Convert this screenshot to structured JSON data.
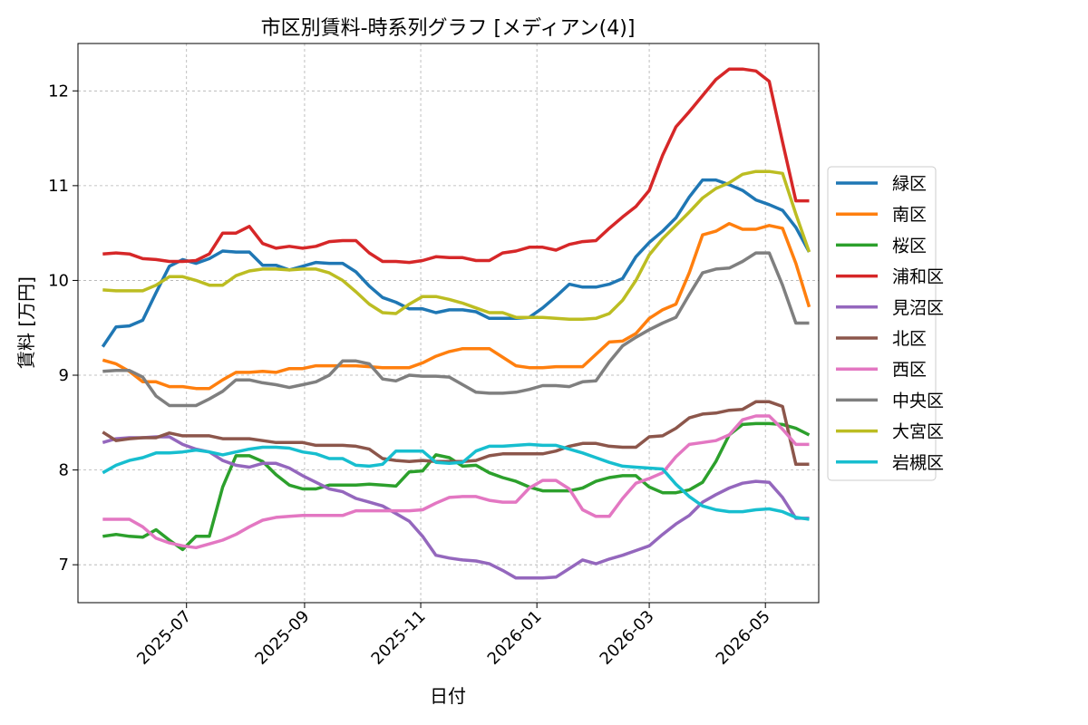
{
  "chart_data": {
    "type": "line",
    "title": "市区別賃料-時系列グラフ [メディアン(4)]",
    "xlabel": "日付",
    "ylabel": "賃料 [万円]",
    "xlim": [
      "2025-05-05",
      "2026-05-29"
    ],
    "ylim": [
      6.6,
      12.5
    ],
    "x_ticks": [
      "2025-07",
      "2025-09",
      "2025-11",
      "2026-01",
      "2026-03",
      "2026-05"
    ],
    "y_ticks": [
      7,
      8,
      9,
      10,
      11,
      12
    ],
    "grid": true,
    "legend_position": "right",
    "x": [
      "2025-05-18",
      "2025-05-25",
      "2025-06-01",
      "2025-06-08",
      "2025-06-15",
      "2025-06-22",
      "2025-06-29",
      "2025-07-06",
      "2025-07-13",
      "2025-07-20",
      "2025-07-27",
      "2025-08-03",
      "2025-08-10",
      "2025-08-17",
      "2025-08-24",
      "2025-08-31",
      "2025-09-07",
      "2025-09-14",
      "2025-09-21",
      "2025-09-28",
      "2025-10-05",
      "2025-10-12",
      "2025-10-19",
      "2025-10-26",
      "2025-11-02",
      "2025-11-09",
      "2025-11-16",
      "2025-11-23",
      "2025-11-30",
      "2025-12-07",
      "2025-12-14",
      "2025-12-21",
      "2025-12-28",
      "2026-01-04",
      "2026-01-11",
      "2026-01-18",
      "2026-01-25",
      "2026-02-01",
      "2026-02-08",
      "2026-02-15",
      "2026-02-22",
      "2026-03-01",
      "2026-03-08",
      "2026-03-15",
      "2026-03-22",
      "2026-03-29",
      "2026-04-05",
      "2026-04-12",
      "2026-04-19",
      "2026-04-26",
      "2026-05-03",
      "2026-05-10",
      "2026-05-17"
    ],
    "series": [
      {
        "name": "緑区",
        "color": "#1f77b4",
        "values": [
          9.3,
          9.51,
          9.52,
          9.58,
          9.87,
          10.15,
          10.22,
          10.18,
          10.23,
          10.31,
          10.3,
          10.3,
          10.16,
          10.16,
          10.11,
          10.15,
          10.19,
          10.18,
          10.18,
          10.09,
          9.94,
          9.82,
          9.77,
          9.7,
          9.7,
          9.66,
          9.69,
          9.69,
          9.67,
          9.6,
          9.6,
          9.6,
          9.61,
          9.71,
          9.83,
          9.96,
          9.93,
          9.93,
          9.96,
          10.02,
          10.25,
          10.4,
          10.52,
          10.66,
          10.88,
          11.06,
          11.06,
          11.01,
          10.95,
          10.85,
          10.8,
          10.74,
          10.56
        ]
      },
      {
        "name": "南区",
        "color": "#ff7f0e",
        "values": [
          9.16,
          9.12,
          9.04,
          8.93,
          8.93,
          8.88,
          8.88,
          8.86,
          8.86,
          8.95,
          9.03,
          9.03,
          9.04,
          9.03,
          9.07,
          9.07,
          9.1,
          9.1,
          9.1,
          9.1,
          9.09,
          9.08,
          9.08,
          9.08,
          9.13,
          9.2,
          9.25,
          9.28,
          9.28,
          9.28,
          9.19,
          9.1,
          9.08,
          9.08,
          9.09,
          9.09,
          9.09,
          9.22,
          9.35,
          9.36,
          9.44,
          9.6,
          9.69,
          9.75,
          10.08,
          10.48,
          10.52,
          10.6,
          10.54,
          10.54,
          10.58,
          10.55,
          10.18
        ]
      },
      {
        "name": "桜区",
        "color": "#2ca02c",
        "values": [
          7.3,
          7.32,
          7.3,
          7.29,
          7.37,
          7.26,
          7.16,
          7.3,
          7.3,
          7.82,
          8.15,
          8.15,
          8.09,
          7.95,
          7.84,
          7.8,
          7.8,
          7.84,
          7.84,
          7.84,
          7.85,
          7.84,
          7.83,
          7.98,
          7.99,
          8.16,
          8.13,
          8.04,
          8.05,
          7.97,
          7.92,
          7.88,
          7.82,
          7.78,
          7.78,
          7.78,
          7.81,
          7.88,
          7.92,
          7.94,
          7.94,
          7.82,
          7.76,
          7.76,
          7.79,
          7.87,
          8.09,
          8.37,
          8.48,
          8.49,
          8.49,
          8.48,
          8.44
        ]
      },
      {
        "name": "浦和区",
        "color": "#d62728",
        "values": [
          10.28,
          10.29,
          10.28,
          10.23,
          10.22,
          10.2,
          10.2,
          10.21,
          10.28,
          10.5,
          10.5,
          10.57,
          10.39,
          10.34,
          10.36,
          10.34,
          10.36,
          10.41,
          10.42,
          10.42,
          10.29,
          10.2,
          10.2,
          10.19,
          10.21,
          10.25,
          10.24,
          10.24,
          10.21,
          10.21,
          10.29,
          10.31,
          10.35,
          10.35,
          10.32,
          10.38,
          10.41,
          10.42,
          10.55,
          10.67,
          10.78,
          10.95,
          11.32,
          11.62,
          11.78,
          11.95,
          12.12,
          12.23,
          12.23,
          12.21,
          12.1,
          11.46,
          10.84
        ]
      },
      {
        "name": "見沼区",
        "color": "#9467bd",
        "values": [
          8.29,
          8.33,
          8.34,
          8.34,
          8.35,
          8.35,
          8.27,
          8.22,
          8.19,
          8.1,
          8.05,
          8.03,
          8.07,
          8.07,
          8.02,
          7.94,
          7.87,
          7.8,
          7.77,
          7.7,
          7.66,
          7.62,
          7.54,
          7.46,
          7.3,
          7.1,
          7.07,
          7.05,
          7.04,
          7.01,
          6.94,
          6.86,
          6.86,
          6.86,
          6.87,
          6.96,
          7.05,
          7.01,
          7.06,
          7.1,
          7.15,
          7.2,
          7.32,
          7.43,
          7.52,
          7.66,
          7.74,
          7.81,
          7.86,
          7.88,
          7.87,
          7.71,
          7.49
        ]
      },
      {
        "name": "北区",
        "color": "#8c564b",
        "values": [
          8.4,
          8.31,
          8.33,
          8.34,
          8.34,
          8.39,
          8.36,
          8.36,
          8.36,
          8.33,
          8.33,
          8.33,
          8.31,
          8.29,
          8.29,
          8.29,
          8.26,
          8.26,
          8.26,
          8.25,
          8.22,
          8.12,
          8.1,
          8.09,
          8.1,
          8.09,
          8.09,
          8.09,
          8.1,
          8.15,
          8.17,
          8.17,
          8.17,
          8.17,
          8.2,
          8.25,
          8.28,
          8.28,
          8.25,
          8.24,
          8.24,
          8.35,
          8.36,
          8.44,
          8.55,
          8.59,
          8.6,
          8.63,
          8.64,
          8.72,
          8.72,
          8.67,
          8.06
        ]
      },
      {
        "name": "西区",
        "color": "#e377c2",
        "values": [
          7.48,
          7.48,
          7.48,
          7.4,
          7.28,
          7.23,
          7.2,
          7.18,
          7.22,
          7.26,
          7.32,
          7.4,
          7.47,
          7.5,
          7.51,
          7.52,
          7.52,
          7.52,
          7.52,
          7.57,
          7.57,
          7.57,
          7.57,
          7.57,
          7.58,
          7.65,
          7.71,
          7.72,
          7.72,
          7.68,
          7.66,
          7.66,
          7.81,
          7.89,
          7.89,
          7.8,
          7.58,
          7.51,
          7.51,
          7.7,
          7.86,
          7.91,
          7.97,
          8.14,
          8.27,
          8.29,
          8.31,
          8.37,
          8.53,
          8.57,
          8.57,
          8.43,
          8.27
        ]
      },
      {
        "name": "中央区",
        "color": "#7f7f7f",
        "values": [
          9.04,
          9.05,
          9.05,
          8.98,
          8.78,
          8.68,
          8.68,
          8.68,
          8.75,
          8.83,
          8.95,
          8.95,
          8.92,
          8.9,
          8.87,
          8.9,
          8.93,
          9.0,
          9.15,
          9.15,
          9.12,
          8.96,
          8.94,
          9.0,
          8.99,
          8.99,
          8.98,
          8.9,
          8.82,
          8.81,
          8.81,
          8.82,
          8.85,
          8.89,
          8.89,
          8.88,
          8.93,
          8.94,
          9.14,
          9.31,
          9.4,
          9.48,
          9.55,
          9.61,
          9.85,
          10.08,
          10.12,
          10.13,
          10.2,
          10.29,
          10.29,
          9.95,
          9.55
        ]
      },
      {
        "name": "大宮区",
        "color": "#bcbd22",
        "values": [
          9.9,
          9.89,
          9.89,
          9.89,
          9.95,
          10.04,
          10.04,
          10.0,
          9.95,
          9.95,
          10.05,
          10.1,
          10.12,
          10.12,
          10.11,
          10.12,
          10.12,
          10.08,
          10.0,
          9.88,
          9.75,
          9.66,
          9.65,
          9.75,
          9.83,
          9.83,
          9.8,
          9.76,
          9.71,
          9.66,
          9.66,
          9.61,
          9.61,
          9.61,
          9.6,
          9.59,
          9.59,
          9.6,
          9.65,
          9.79,
          10.0,
          10.27,
          10.44,
          10.58,
          10.72,
          10.87,
          10.97,
          11.03,
          11.12,
          11.15,
          11.15,
          11.13,
          10.7
        ]
      },
      {
        "name": "岩槻区",
        "color": "#17becf",
        "values": [
          7.97,
          8.05,
          8.1,
          8.13,
          8.18,
          8.18,
          8.19,
          8.21,
          8.19,
          8.16,
          8.19,
          8.22,
          8.24,
          8.24,
          8.23,
          8.19,
          8.17,
          8.12,
          8.12,
          8.05,
          8.04,
          8.06,
          8.2,
          8.2,
          8.2,
          8.08,
          8.07,
          8.08,
          8.2,
          8.25,
          8.25,
          8.26,
          8.27,
          8.26,
          8.26,
          8.22,
          8.18,
          8.13,
          8.08,
          8.04,
          8.03,
          8.02,
          8.01,
          7.85,
          7.72,
          7.62,
          7.58,
          7.56,
          7.56,
          7.58,
          7.59,
          7.56,
          7.5
        ]
      }
    ],
    "x_last": "2026-05-24",
    "last_values": [
      10.3,
      9.72,
      8.37,
      10.84,
      7.49,
      8.06,
      8.27,
      9.55,
      10.3,
      7.48
    ]
  }
}
